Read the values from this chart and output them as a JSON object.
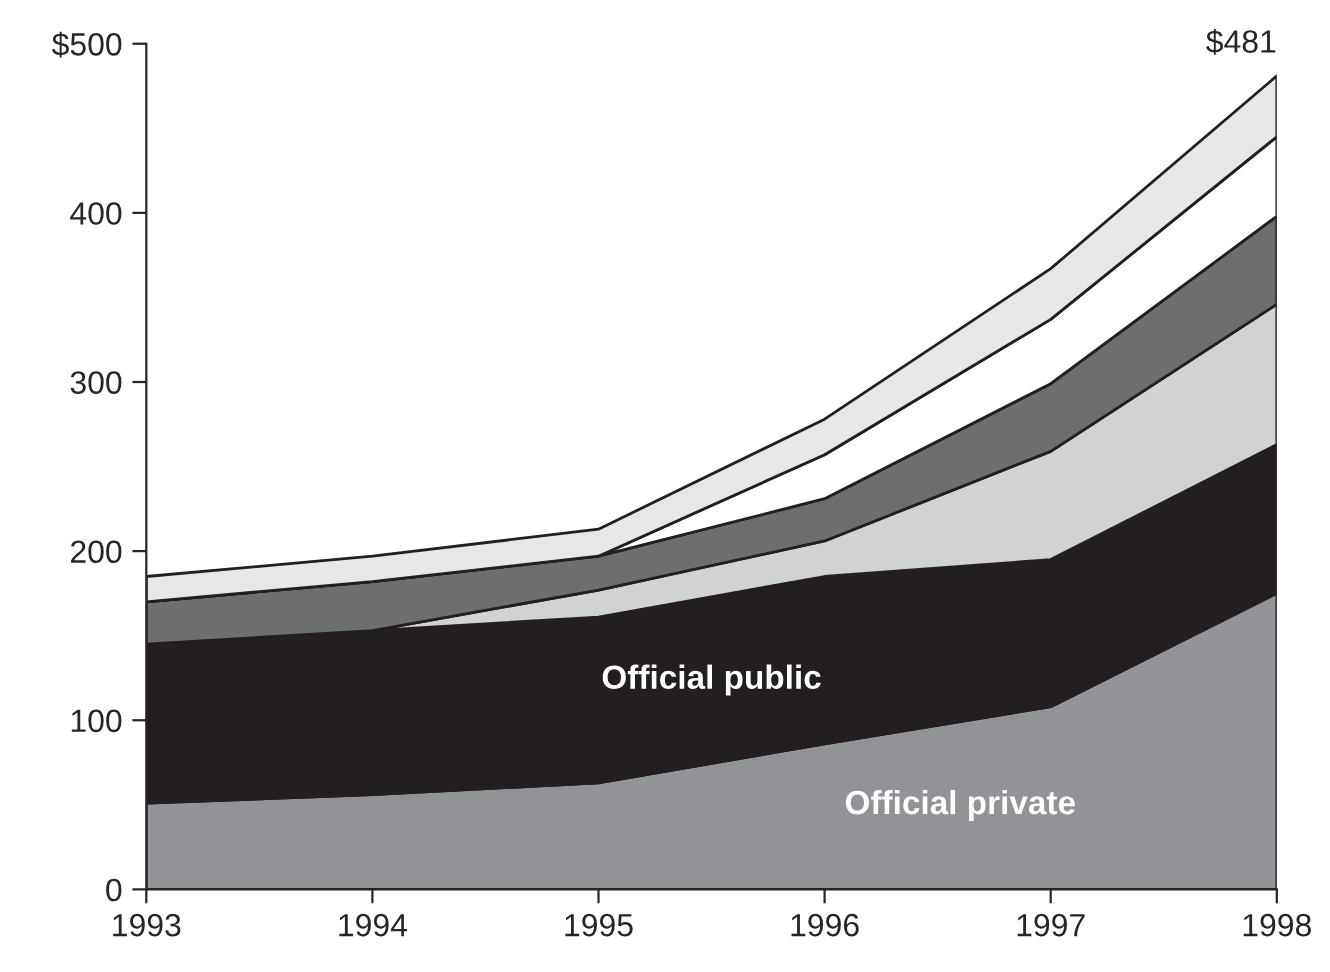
{
  "chart_data": {
    "type": "area",
    "stacked": true,
    "x": [
      1993,
      1994,
      1995,
      1996,
      1997,
      1998
    ],
    "series": [
      {
        "name": "Official private",
        "color": "#929396",
        "values": [
          51,
          56,
          63,
          86,
          108,
          175
        ]
      },
      {
        "name": "Official public",
        "color": "#231f20",
        "values": [
          94,
          97,
          98,
          99,
          87,
          88
        ]
      },
      {
        "color": "#d1d2d4",
        "values": [
          0,
          0,
          16,
          21,
          64,
          83
        ]
      },
      {
        "color": "#6d6e70",
        "values": [
          25,
          29,
          20,
          25,
          40,
          52
        ]
      },
      {
        "color": "#ffffff",
        "values": [
          0,
          0,
          0,
          26,
          38,
          47
        ]
      },
      {
        "color": "#e6e7e8",
        "values": [
          15,
          15,
          16,
          21,
          30,
          36
        ]
      }
    ],
    "xlim": [
      1993,
      1998
    ],
    "xticks": [
      1993,
      1994,
      1995,
      1996,
      1997,
      1998
    ],
    "ylim": [
      0,
      500
    ],
    "yticks": [
      0,
      100,
      200,
      300,
      400,
      {
        "value": 500,
        "label": "$500"
      }
    ],
    "annotations": [
      {
        "text": "$481",
        "x": 1998,
        "y": 481
      }
    ],
    "legend": false,
    "grid": false
  }
}
